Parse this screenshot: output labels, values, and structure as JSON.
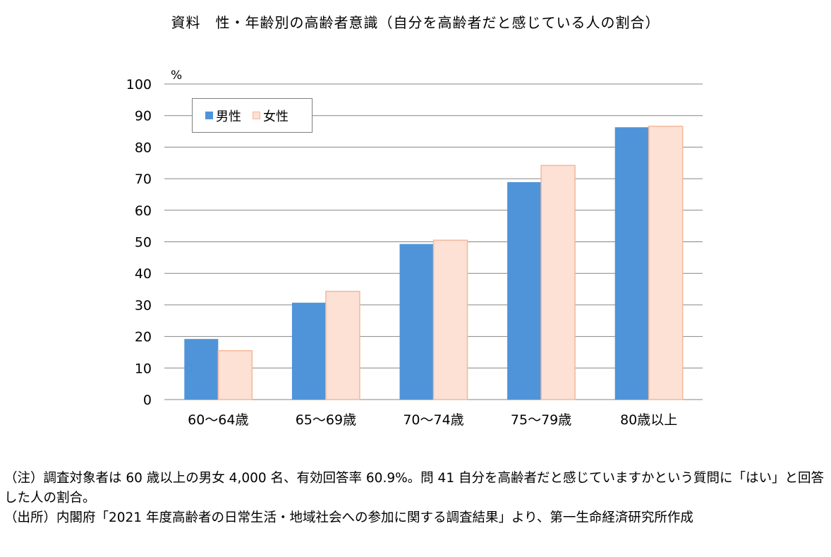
{
  "title": "資料　性・年齢別の高齢者意識（自分を高齢者だと感じている人の割合）",
  "notes": [
    "（注）調査対象者は 60 歳以上の男女 4,000 名、有効回答率 60.9%。問 41 自分を高齢者だと感じていますかという質問に「はい」と回答した人の割合。",
    "（出所）内閣府「2021 年度高齢者の日常生活・地域社会への参加に関する調査結果」より、第一生命経済研究所作成"
  ],
  "colors": {
    "male": "#4f94d9",
    "female": "#fce1d4",
    "female_border": "#f4b89a",
    "grid": "#868686"
  },
  "chart_data": {
    "type": "bar",
    "ylabel": "%",
    "ylim": [
      0,
      100
    ],
    "yticks": [
      0,
      10,
      20,
      30,
      40,
      50,
      60,
      70,
      80,
      90,
      100
    ],
    "categories": [
      "60～64歳",
      "65～69歳",
      "70～74歳",
      "75～79歳",
      "80歳以上"
    ],
    "series": [
      {
        "name": "男性",
        "values": [
          19.2,
          30.7,
          49.3,
          68.9,
          86.3
        ]
      },
      {
        "name": "女性",
        "values": [
          15.5,
          34.3,
          50.5,
          74.2,
          86.6
        ]
      }
    ],
    "legend": "top-left",
    "grid": true
  }
}
